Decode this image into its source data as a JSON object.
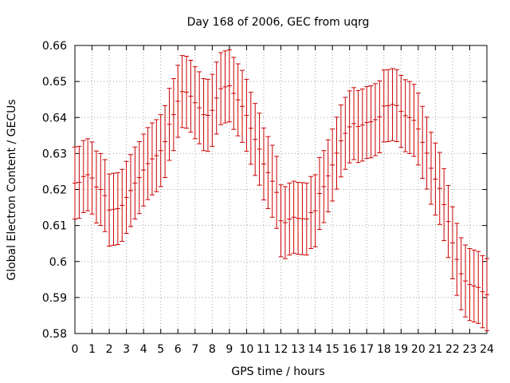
{
  "chart_data": {
    "type": "scatter",
    "title": "Day 168 of 2006, GEC from uqrg",
    "xlabel": "GPS time / hours",
    "ylabel": "Global Electron Content / GECUs",
    "xlim": [
      0,
      24
    ],
    "ylim": [
      0.58,
      0.66
    ],
    "xticks": [
      0,
      1,
      2,
      3,
      4,
      5,
      6,
      7,
      8,
      9,
      10,
      11,
      12,
      13,
      14,
      15,
      16,
      17,
      18,
      19,
      20,
      21,
      22,
      23,
      24
    ],
    "yticks": [
      0.58,
      0.59,
      0.6,
      0.61,
      0.62,
      0.63,
      0.64,
      0.65,
      0.66
    ],
    "ytick_labels": [
      "0.58",
      "0.59",
      "0.6",
      "0.61",
      "0.62",
      "0.63",
      "0.64",
      "0.65",
      "0.66"
    ],
    "grid": true,
    "error_bar": 0.01,
    "series": [
      {
        "name": "GEC",
        "color": "#cc0000",
        "x": [
          0,
          0.25,
          0.5,
          0.75,
          1,
          1.25,
          1.5,
          1.75,
          2,
          2.25,
          2.5,
          2.75,
          3,
          3.25,
          3.5,
          3.75,
          4,
          4.25,
          4.5,
          4.75,
          5,
          5.25,
          5.5,
          5.75,
          6,
          6.25,
          6.5,
          6.75,
          7,
          7.25,
          7.5,
          7.75,
          8,
          8.25,
          8.5,
          8.75,
          9,
          9.25,
          9.5,
          9.75,
          10,
          10.25,
          10.5,
          10.75,
          11,
          11.25,
          11.5,
          11.75,
          12,
          12.25,
          12.5,
          12.75,
          13,
          13.25,
          13.5,
          13.75,
          14,
          14.25,
          14.5,
          14.75,
          15,
          15.25,
          15.5,
          15.75,
          16,
          16.25,
          16.5,
          16.75,
          17,
          17.25,
          17.5,
          17.75,
          18,
          18.25,
          18.5,
          18.75,
          19,
          19.25,
          19.5,
          19.75,
          20,
          20.25,
          20.5,
          20.75,
          21,
          21.25,
          21.5,
          21.75,
          22,
          22.25,
          22.5,
          22.75,
          23,
          23.25,
          23.5,
          23.75,
          24
        ],
        "y": [
          0.6218,
          0.622,
          0.6236,
          0.6241,
          0.6232,
          0.6207,
          0.62,
          0.6183,
          0.6143,
          0.6145,
          0.6147,
          0.6156,
          0.6178,
          0.6197,
          0.6218,
          0.6233,
          0.6254,
          0.6272,
          0.6285,
          0.6294,
          0.6308,
          0.6333,
          0.6381,
          0.6408,
          0.6445,
          0.6472,
          0.647,
          0.6459,
          0.6441,
          0.6427,
          0.6408,
          0.6406,
          0.642,
          0.6454,
          0.648,
          0.6485,
          0.6488,
          0.6467,
          0.6449,
          0.6431,
          0.6406,
          0.637,
          0.6339,
          0.6312,
          0.6271,
          0.6247,
          0.6223,
          0.6192,
          0.6113,
          0.6108,
          0.6118,
          0.6123,
          0.612,
          0.6119,
          0.6118,
          0.6136,
          0.6141,
          0.6189,
          0.6208,
          0.6238,
          0.6268,
          0.6301,
          0.6335,
          0.6356,
          0.6374,
          0.6383,
          0.6375,
          0.6379,
          0.6386,
          0.6388,
          0.6394,
          0.6402,
          0.6432,
          0.6433,
          0.6436,
          0.6433,
          0.6417,
          0.6405,
          0.64,
          0.6392,
          0.6368,
          0.6331,
          0.6301,
          0.6259,
          0.6229,
          0.6203,
          0.6158,
          0.6111,
          0.6052,
          0.6006,
          0.5966,
          0.5946,
          0.5936,
          0.5932,
          0.5928,
          0.5916,
          0.5908
        ]
      }
    ]
  }
}
